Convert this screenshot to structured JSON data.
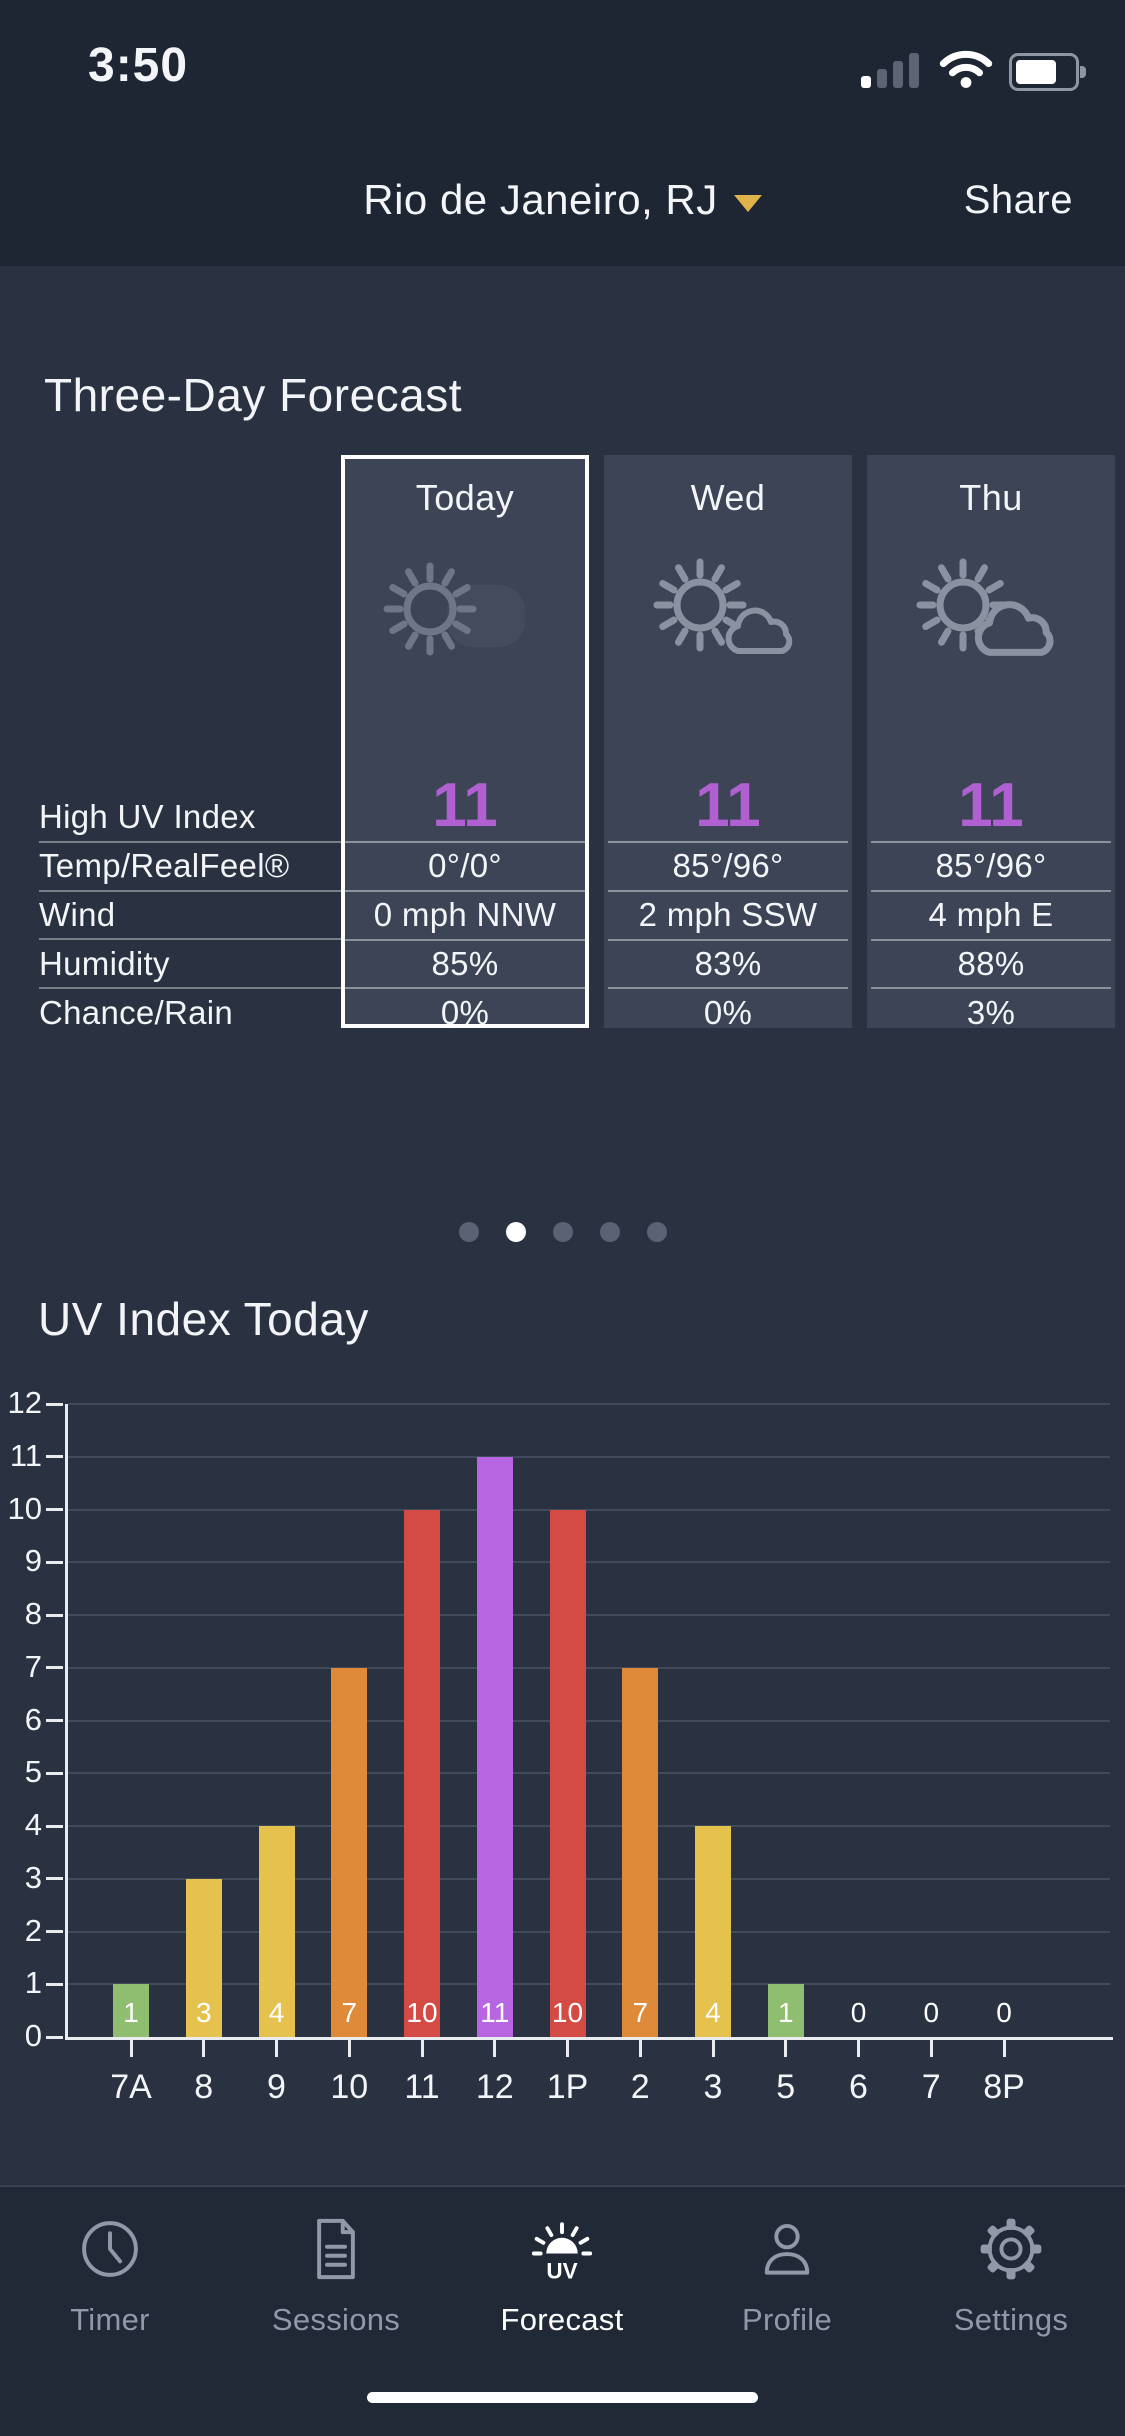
{
  "status_bar": {
    "time": "3:50",
    "signal_bars_active": 1,
    "signal_bars_total": 4,
    "wifi": "full",
    "battery_fill_ratio": 0.75
  },
  "header": {
    "location": "Rio de Janeiro, RJ",
    "share_label": "Share"
  },
  "forecast": {
    "title": "Three-Day Forecast",
    "row_labels": [
      "High UV Index",
      "Temp/RealFeel®",
      "Wind",
      "Humidity",
      "Chance/Rain"
    ],
    "days": [
      {
        "name": "Today",
        "icon": "sun",
        "uv": "11",
        "temp": "0°/0°",
        "wind": "0 mph NNW",
        "humidity": "85%",
        "rain": "0%",
        "selected": true
      },
      {
        "name": "Wed",
        "icon": "sun-small-cloud",
        "uv": "11",
        "temp": "85°/96°",
        "wind": "2 mph SSW",
        "humidity": "83%",
        "rain": "0%",
        "selected": false
      },
      {
        "name": "Thu",
        "icon": "sun-cloud",
        "uv": "11",
        "temp": "85°/96°",
        "wind": "4 mph E",
        "humidity": "88%",
        "rain": "3%",
        "selected": false
      }
    ]
  },
  "pager": {
    "dots": 5,
    "active_index": 1
  },
  "chart_data": {
    "type": "bar",
    "title": "UV Index Today",
    "categories": [
      "7A",
      "8",
      "9",
      "10",
      "11",
      "12",
      "1P",
      "2",
      "3",
      "5",
      "6",
      "7",
      "8P"
    ],
    "values": [
      1,
      3,
      4,
      7,
      10,
      11,
      10,
      7,
      4,
      1,
      0,
      0,
      0
    ],
    "bar_colors": [
      "#8FBE70",
      "#E5C14D",
      "#E5C14D",
      "#DE8A38",
      "#D44B45",
      "#B765E0",
      "#D44B45",
      "#DE8A38",
      "#E5C14D",
      "#8FBE70",
      null,
      null,
      null
    ],
    "xlabel": "",
    "ylabel": "",
    "ylim": [
      0,
      12
    ],
    "yticks": [
      0,
      1,
      2,
      3,
      4,
      5,
      6,
      7,
      8,
      9,
      10,
      11,
      12
    ],
    "grid": true,
    "legend": false
  },
  "tab_bar": {
    "items": [
      {
        "label": "Timer",
        "icon": "clock",
        "active": false
      },
      {
        "label": "Sessions",
        "icon": "document",
        "active": false
      },
      {
        "label": "Forecast",
        "icon": "uv-sun",
        "active": true
      },
      {
        "label": "Profile",
        "icon": "person",
        "active": false
      },
      {
        "label": "Settings",
        "icon": "gear",
        "active": false
      }
    ]
  },
  "colors": {
    "uv_low": "#8FBE70",
    "uv_moderate": "#E5C14D",
    "uv_high": "#DE8A38",
    "uv_very_high": "#D44B45",
    "uv_extreme": "#B765E0",
    "uv_number": "#B160D2",
    "accent_caret": "#E0B34A",
    "header_bg": "#1E2533",
    "content_bg": "#2A3140",
    "card_bg": "#3C4456"
  }
}
